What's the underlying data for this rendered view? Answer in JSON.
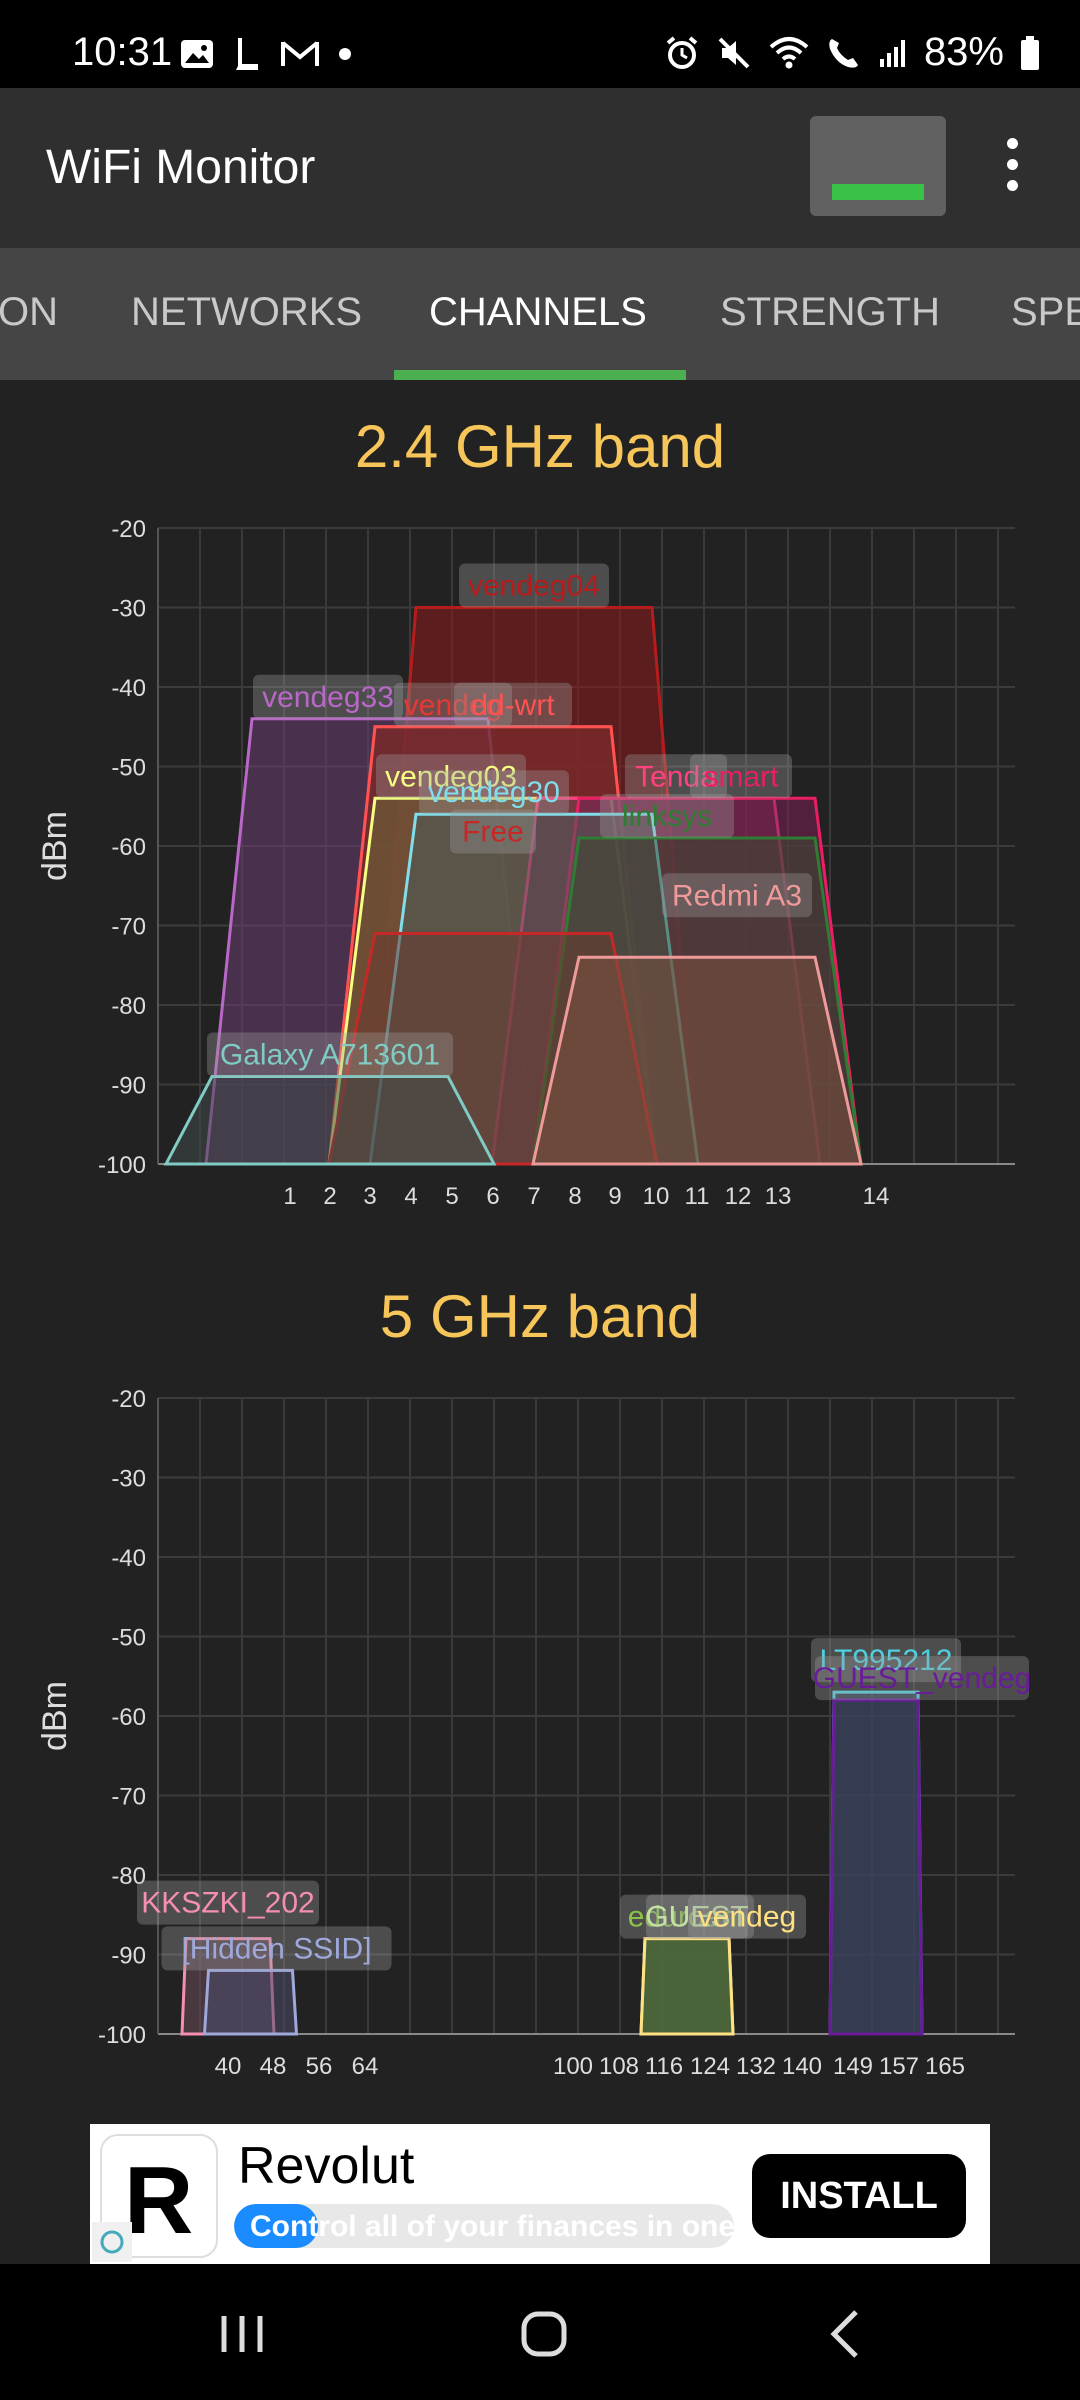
{
  "status_bar": {
    "time": "10:31",
    "battery": "83%",
    "left_icons": [
      "image-icon",
      "l-app-icon",
      "gmail-icon",
      "dot-icon"
    ],
    "right_icons": [
      "alarm-icon",
      "mute-icon",
      "wifi-icon",
      "wifi-call-icon",
      "cell-signal-icon",
      "battery-icon"
    ]
  },
  "app_bar": {
    "title": "WiFi Monitor"
  },
  "tabs": [
    {
      "label": "ON",
      "active": false
    },
    {
      "label": "NETWORKS",
      "active": false
    },
    {
      "label": "CHANNELS",
      "active": true
    },
    {
      "label": "STRENGTH",
      "active": false
    },
    {
      "label": "SPE",
      "active": false
    }
  ],
  "chart_data": [
    {
      "type": "area",
      "title": "2.4 GHz band",
      "ylabel": "dBm",
      "ylim": [
        -100,
        -20
      ],
      "y_ticks": [
        "-20",
        "-30",
        "-40",
        "-50",
        "-60",
        "-70",
        "-80",
        "-90",
        "-100"
      ],
      "x_ticks": [
        "1",
        "2",
        "3",
        "4",
        "5",
        "6",
        "7",
        "8",
        "9",
        "10",
        "11",
        "12",
        "13",
        "14"
      ],
      "grid": true,
      "series": [
        {
          "name": "vendeg04",
          "channel": 7,
          "dbm": -30,
          "color": "#b71c1c",
          "fill": "#8b1a1a"
        },
        {
          "name": "vendeg33",
          "channel": 3,
          "dbm": -44,
          "color": "#ba68c8",
          "fill": "#6a3d70"
        },
        {
          "name": "vendeg",
          "channel": 6,
          "dbm": -45,
          "color": "#e53935",
          "fill": "#7a2a2a"
        },
        {
          "name": "dd-wrt",
          "channel": 6,
          "dbm": -45,
          "color": "#ff5252",
          "fill": "#7a2a2a"
        },
        {
          "name": "vendeg03",
          "channel": 6,
          "dbm": -54,
          "color": "#f4ff81",
          "fill": "#6b6b3a"
        },
        {
          "name": "Tenda",
          "channel": 10,
          "dbm": -54,
          "color": "#ff4081",
          "fill": "#7a2a50"
        },
        {
          "name": "smart",
          "channel": 11,
          "dbm": -54,
          "color": "#e91e63",
          "fill": "#7a1f52"
        },
        {
          "name": "vendeg30",
          "channel": 7,
          "dbm": -56,
          "color": "#80deea",
          "fill": "#4a5a5a"
        },
        {
          "name": "linksys",
          "channel": 11,
          "dbm": -59,
          "color": "#2e7d32",
          "fill": "#3a4a30"
        },
        {
          "name": "Free",
          "channel": 6,
          "dbm": -71,
          "color": "#c62828",
          "fill": "#6a3a30"
        },
        {
          "name": "Redmi A3",
          "channel": 11,
          "dbm": -74,
          "color": "#ef9a9a",
          "fill": "#7a5040"
        },
        {
          "name": "Galaxy A713601",
          "channel": 2,
          "dbm": -89,
          "color": "#80cbc4",
          "fill": "#3f4a4a"
        }
      ]
    },
    {
      "type": "area",
      "title": "5 GHz band",
      "ylabel": "dBm",
      "ylim": [
        -100,
        -20
      ],
      "y_ticks": [
        "-20",
        "-30",
        "-40",
        "-50",
        "-60",
        "-70",
        "-80",
        "-90",
        "-100"
      ],
      "x_ticks": [
        "40",
        "48",
        "56",
        "64",
        "100",
        "108",
        "116",
        "124",
        "132",
        "140",
        "149",
        "157",
        "165"
      ],
      "grid": true,
      "series": [
        {
          "name": "KKSZKI_202",
          "channel": 40,
          "dbm": -88,
          "color": "#f48fb1",
          "fill": "#6a4a5a"
        },
        {
          "name": "[Hidden SSID]",
          "channel": 44,
          "dbm": -92,
          "color": "#9fa8da",
          "fill": "#4a4a6a"
        },
        {
          "name": "eduroam",
          "channel": 120,
          "dbm": -88,
          "color": "#8bc34a",
          "fill": "#4f6a3a"
        },
        {
          "name": "GUEST",
          "channel": 120,
          "dbm": -88,
          "color": "#c5e1a5",
          "fill": "#4f6a3a"
        },
        {
          "name": "vendeg",
          "channel": 120,
          "dbm": -88,
          "color": "#ffe082",
          "fill": "#4f6a3a"
        },
        {
          "name": "LT995212",
          "channel": 153,
          "dbm": -57,
          "color": "#4dd0e1",
          "fill": "#3a4a6a"
        },
        {
          "name": "GUEST_vendeg",
          "channel": 153,
          "dbm": -58,
          "color": "#6a1b9a",
          "fill": "#3a3f5a"
        }
      ]
    }
  ],
  "ad": {
    "brand": "Revolut",
    "tagline": "Control all of your finances in one p",
    "install_label": "INSTALL"
  },
  "nav": {
    "icons": [
      "recents-icon",
      "home-icon",
      "back-icon"
    ]
  }
}
